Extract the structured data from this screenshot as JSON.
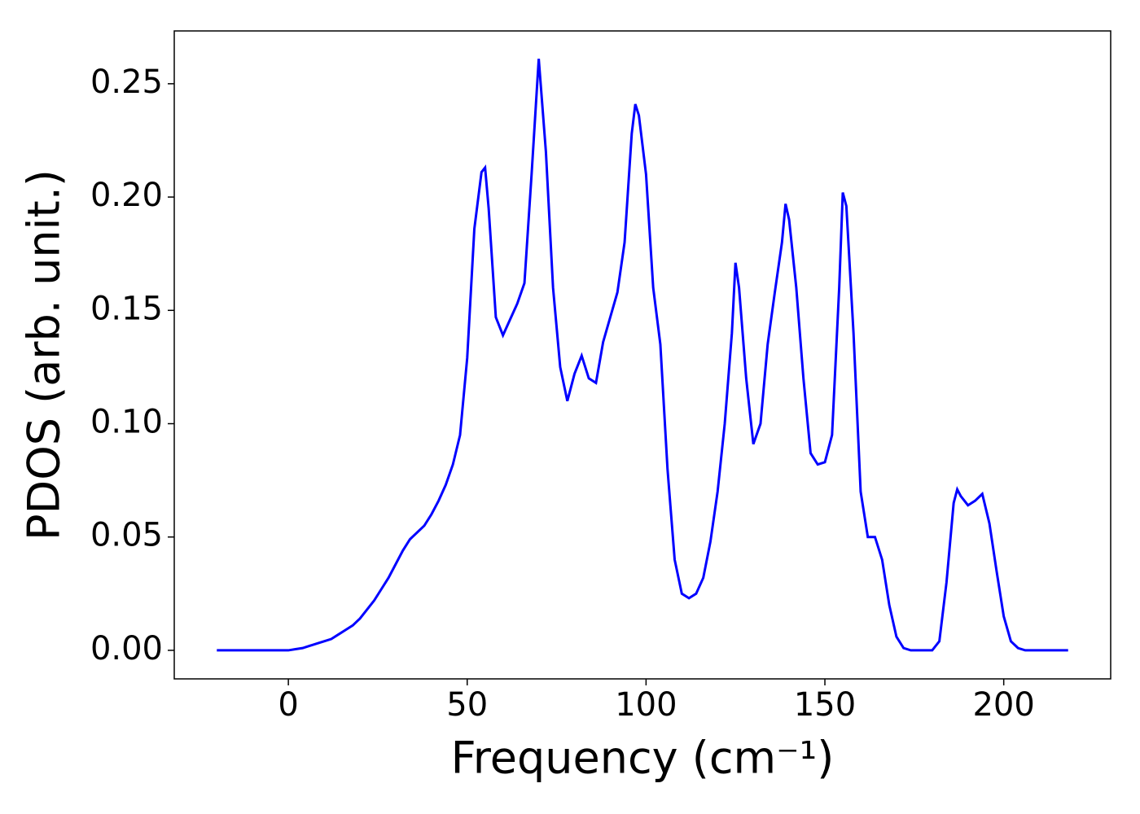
{
  "chart_data": {
    "type": "line",
    "x_label": "Frequency (cm⁻¹)",
    "y_label": "PDOS (arb. unit.)",
    "x": [
      -20,
      -18,
      -16,
      -14,
      -12,
      -10,
      -8,
      -6,
      -4,
      -2,
      0,
      2,
      4,
      6,
      8,
      10,
      12,
      14,
      16,
      18,
      20,
      22,
      24,
      26,
      28,
      30,
      32,
      34,
      36,
      38,
      40,
      42,
      44,
      46,
      48,
      50,
      52,
      54,
      55,
      56,
      58,
      60,
      62,
      64,
      66,
      68,
      70,
      72,
      74,
      76,
      78,
      80,
      82,
      84,
      86,
      88,
      90,
      92,
      94,
      96,
      97,
      98,
      100,
      102,
      104,
      106,
      108,
      110,
      112,
      114,
      116,
      118,
      120,
      122,
      124,
      125,
      126,
      128,
      130,
      132,
      134,
      136,
      138,
      139,
      140,
      142,
      144,
      146,
      148,
      150,
      152,
      154,
      155,
      156,
      158,
      160,
      162,
      164,
      166,
      168,
      170,
      172,
      174,
      176,
      178,
      180,
      182,
      184,
      186,
      187,
      188,
      190,
      192,
      194,
      196,
      198,
      200,
      202,
      204,
      206,
      208,
      210,
      212,
      214,
      216,
      218
    ],
    "series": [
      {
        "color": "#0000ff",
        "values": [
          0,
          0,
          0,
          0,
          0,
          0,
          0,
          0,
          0,
          0,
          0,
          0.0005,
          0.001,
          0.002,
          0.003,
          0.004,
          0.005,
          0.007,
          0.009,
          0.011,
          0.014,
          0.018,
          0.022,
          0.027,
          0.032,
          0.038,
          0.044,
          0.049,
          0.052,
          0.055,
          0.06,
          0.066,
          0.073,
          0.082,
          0.095,
          0.129,
          0.186,
          0.211,
          0.213,
          0.195,
          0.147,
          0.139,
          0.146,
          0.153,
          0.162,
          0.21,
          0.261,
          0.22,
          0.16,
          0.125,
          0.11,
          0.122,
          0.13,
          0.12,
          0.118,
          0.136,
          0.147,
          0.158,
          0.18,
          0.228,
          0.241,
          0.236,
          0.21,
          0.16,
          0.135,
          0.08,
          0.04,
          0.025,
          0.023,
          0.025,
          0.032,
          0.048,
          0.07,
          0.1,
          0.14,
          0.171,
          0.16,
          0.12,
          0.091,
          0.1,
          0.135,
          0.158,
          0.18,
          0.197,
          0.19,
          0.16,
          0.12,
          0.087,
          0.082,
          0.083,
          0.095,
          0.16,
          0.202,
          0.196,
          0.14,
          0.07,
          0.05,
          0.05,
          0.04,
          0.02,
          0.006,
          0.001,
          0,
          0,
          0,
          0,
          0.004,
          0.03,
          0.065,
          0.071,
          0.068,
          0.064,
          0.066,
          0.069,
          0.056,
          0.035,
          0.015,
          0.004,
          0.001,
          0,
          0,
          0,
          0,
          0,
          0,
          0
        ]
      }
    ],
    "xlim": [
      -31.9,
      229.9
    ],
    "ylim": [
      -0.0126,
      0.2733
    ],
    "xticks": [
      0,
      50,
      100,
      150,
      200
    ],
    "yticks": [
      {
        "value": 0,
        "label": "0.00"
      },
      {
        "value": 0.05,
        "label": "0.05"
      },
      {
        "value": 0.1,
        "label": "0.10"
      },
      {
        "value": 0.15,
        "label": "0.15"
      },
      {
        "value": 0.2,
        "label": "0.20"
      },
      {
        "value": 0.25,
        "label": "0.25"
      }
    ]
  }
}
